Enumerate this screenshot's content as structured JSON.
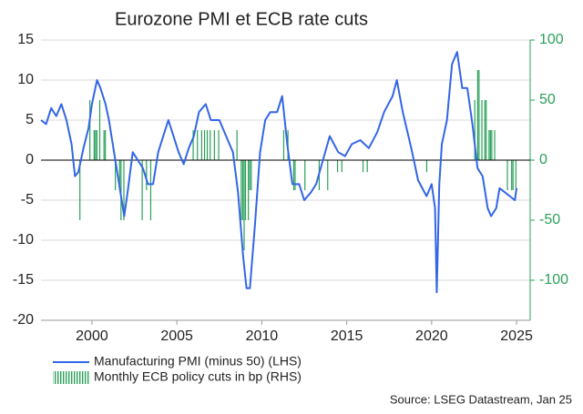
{
  "chart_data": {
    "type": "line",
    "title": "Eurozone PMI et ECB rate cuts",
    "source": "Source: LSEG Datastream, Jan 25",
    "xlim": [
      1997,
      2025.8
    ],
    "xticks": [
      2000,
      2005,
      2010,
      2015,
      2020,
      2025
    ],
    "ylim": [
      -20,
      15
    ],
    "yticks": [
      -20,
      -15,
      -10,
      -5,
      0,
      5,
      10,
      15
    ],
    "y2lim": [
      -133.33,
      100
    ],
    "y2ticks": [
      -100,
      -50,
      0,
      50,
      100
    ],
    "grid": true,
    "series": [
      {
        "name": "Manufacturing PMI (minus 50) (LHS)",
        "type": "line",
        "color": "#3366e6",
        "x": [
          1997.0,
          1997.3,
          1997.6,
          1997.9,
          1998.2,
          1998.5,
          1998.8,
          1999.0,
          1999.2,
          1999.5,
          1999.8,
          2000.0,
          2000.3,
          2000.5,
          2000.8,
          2001.0,
          2001.3,
          2001.6,
          2001.9,
          2002.1,
          2002.4,
          2002.7,
          2003.0,
          2003.3,
          2003.6,
          2003.9,
          2004.2,
          2004.5,
          2004.8,
          2005.1,
          2005.4,
          2005.7,
          2006.0,
          2006.3,
          2006.7,
          2007.0,
          2007.5,
          2007.9,
          2008.3,
          2008.6,
          2008.9,
          2009.1,
          2009.3,
          2009.6,
          2009.9,
          2010.2,
          2010.5,
          2010.9,
          2011.2,
          2011.5,
          2011.8,
          2012.2,
          2012.5,
          2012.9,
          2013.2,
          2013.6,
          2014.0,
          2014.5,
          2014.9,
          2015.3,
          2015.8,
          2016.3,
          2016.8,
          2017.2,
          2017.7,
          2017.95,
          2018.3,
          2018.8,
          2019.2,
          2019.7,
          2020.0,
          2020.2,
          2020.3,
          2020.45,
          2020.6,
          2020.9,
          2021.2,
          2021.5,
          2021.8,
          2022.1,
          2022.4,
          2022.7,
          2023.0,
          2023.3,
          2023.5,
          2023.8,
          2024.0,
          2024.3,
          2024.6,
          2024.9,
          2025.0
        ],
        "values": [
          5,
          4.5,
          6.5,
          5.5,
          7,
          5,
          2,
          -2,
          -1.5,
          1.5,
          4,
          7,
          10,
          9,
          7,
          5,
          1,
          -3,
          -7,
          -4,
          1,
          0,
          -1,
          -3,
          -3,
          1,
          3,
          5,
          3,
          1,
          -0.5,
          1.5,
          3,
          6,
          7,
          5,
          5,
          3,
          1,
          -4,
          -12,
          -16,
          -16,
          -8,
          1,
          5,
          6,
          6,
          8,
          2,
          -3,
          -3,
          -5,
          -4,
          -3,
          0,
          3,
          1,
          0.5,
          2,
          2.5,
          1.5,
          3.5,
          6,
          8,
          10,
          6,
          1.5,
          -2.5,
          -4.5,
          -3,
          -6,
          -16.5,
          -3,
          2,
          5,
          12,
          13.5,
          9,
          9,
          4.5,
          -1,
          -2,
          -6,
          -7,
          -6,
          -3.5,
          -4,
          -4.5,
          -5,
          -3.5
        ]
      },
      {
        "name": "Monthly ECB policy cuts in bp (RHS)",
        "type": "bar",
        "axis": "y2",
        "color": "#2ca05a",
        "x": [
          1999.29,
          1999.88,
          2000.13,
          2000.21,
          2000.29,
          2000.46,
          2000.71,
          2000.79,
          2001.38,
          2001.63,
          2001.71,
          2001.88,
          2002.96,
          2003.21,
          2003.46,
          2005.96,
          2006.21,
          2006.46,
          2006.63,
          2006.79,
          2006.96,
          2007.21,
          2007.46,
          2008.54,
          2008.79,
          2008.88,
          2008.96,
          2009.04,
          2009.21,
          2009.29,
          2009.38,
          2011.29,
          2011.54,
          2011.88,
          2011.96,
          2012.54,
          2013.38,
          2013.88,
          2014.46,
          2014.71,
          2015.96,
          2016.21,
          2019.71,
          2022.54,
          2022.71,
          2022.79,
          2022.96,
          2023.13,
          2023.21,
          2023.38,
          2023.46,
          2023.54,
          2023.71,
          2024.46,
          2024.71,
          2024.79,
          2024.96
        ],
        "values": [
          -50,
          50,
          25,
          25,
          25,
          50,
          25,
          25,
          -25,
          -25,
          -50,
          -50,
          -50,
          -25,
          -50,
          25,
          25,
          25,
          25,
          25,
          25,
          25,
          25,
          25,
          -50,
          -50,
          -75,
          -50,
          -50,
          -25,
          -25,
          25,
          25,
          -25,
          -25,
          -25,
          -25,
          -25,
          -10,
          -10,
          -10,
          -10,
          -10,
          50,
          75,
          75,
          50,
          50,
          50,
          25,
          25,
          25,
          25,
          -25,
          -25,
          -25,
          -25
        ]
      }
    ]
  }
}
